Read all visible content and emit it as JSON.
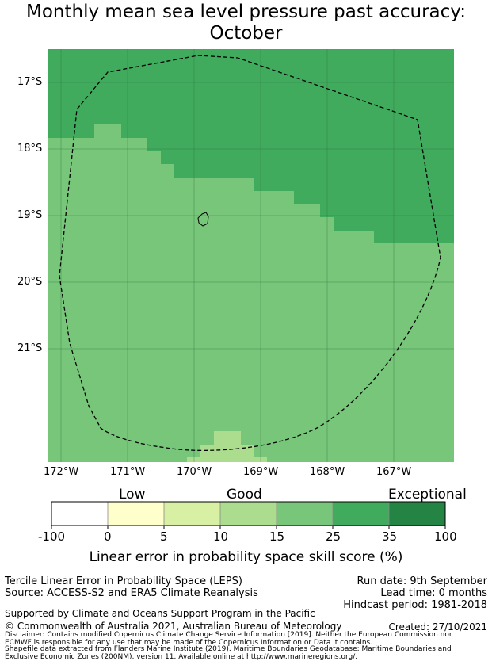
{
  "title_line1": "Monthly mean sea level pressure past accuracy:",
  "title_line2": "October",
  "map": {
    "lat_labels": [
      "17°S",
      "18°S",
      "19°S",
      "20°S",
      "21°S"
    ],
    "lon_labels": [
      "172°W",
      "171°W",
      "170°W",
      "169°W",
      "168°W",
      "167°W"
    ],
    "colors": {
      "band_15_25": "#77c67a",
      "band_25_35": "#40ab5d",
      "band_5_15": "#acdd8e"
    }
  },
  "colorbar": {
    "category_labels": [
      "Low",
      "Good",
      "Exceptional"
    ],
    "tick_labels": [
      "-100",
      "0",
      "5",
      "10",
      "15",
      "25",
      "35",
      "100"
    ],
    "colors": [
      "#ffffff",
      "#ffffcc",
      "#d8f0a3",
      "#acdd8e",
      "#77c67a",
      "#40ab5d",
      "#238443"
    ],
    "title": "Linear error in probability space skill score (%)"
  },
  "info": {
    "method": "Tercile Linear Error in Probability Space (LEPS)",
    "source": "Source: ACCESS-S2 and ERA5 Climate Reanalysis",
    "run_date": "Run date: 9th September",
    "lead_time": "Lead time: 0 months",
    "hindcast": "Hindcast period: 1981-2018",
    "support": "Supported by Climate and Oceans Support Program in the Pacific",
    "copyright": "© Commonwealth of Australia 2021, Australian Bureau of Meteorology",
    "created": "Created: 27/10/2021",
    "disclaimer1": "Disclaimer: Contains modified Copernicus Climate Change Service Information [2019]. Neither the European Commission nor",
    "disclaimer2": "ECMWF is responsible for any use that may be made of the Copernicus Information or Data it contains.",
    "shapefile1": "Shapefile data extracted from Flanders Marine Institute (2019). Maritime Boundaries Geodatabase: Maritime Boundaries and",
    "shapefile2": "Exclusive Economic Zones (200NM), version 11. Available online at http://www.marineregions.org/."
  }
}
